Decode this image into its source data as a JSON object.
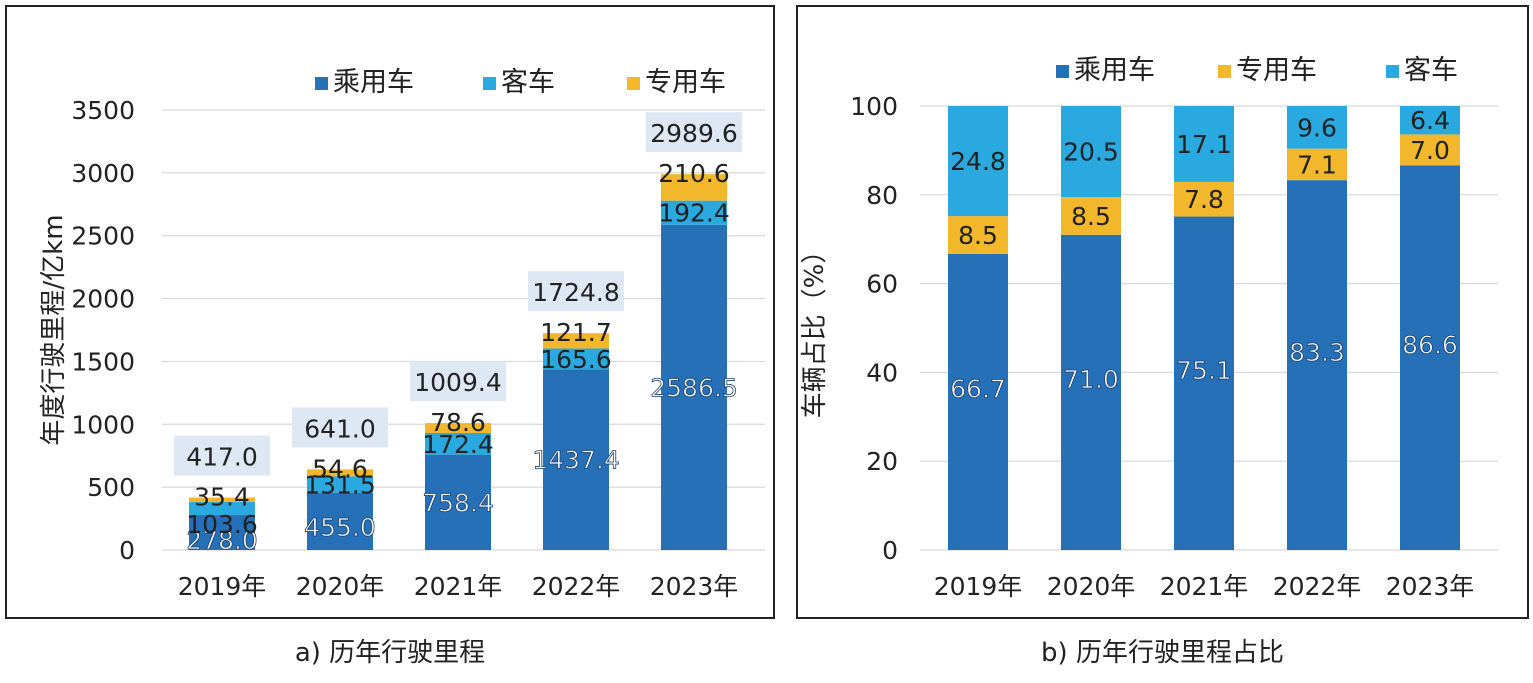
{
  "colors": {
    "passenger": "#2570b7",
    "bus": "#2aa9e0",
    "special": "#f2b72b",
    "total_bg": "#dde8f4",
    "grid": "#d9d9d9",
    "text": "#222222"
  },
  "captions": {
    "a": "a) 历年行驶里程",
    "b": "b) 历年行驶里程占比"
  },
  "chart_data": [
    {
      "type": "bar",
      "stacked": true,
      "title": "",
      "xlabel": "",
      "ylabel": "年度行驶里程/亿km",
      "ylim": [
        0,
        3500
      ],
      "yticks": [
        "0",
        "500",
        "1000",
        "1500",
        "2000",
        "2500",
        "3000",
        "3500"
      ],
      "grid": true,
      "legend_position": "top",
      "categories": [
        "2019年",
        "2020年",
        "2021年",
        "2022年",
        "2023年"
      ],
      "series": [
        {
          "name": "乘用车",
          "values": [
            278.0,
            455.0,
            758.4,
            1437.4,
            2586.5
          ],
          "labels": [
            "278.0",
            "455.0",
            "758.4",
            "1437.4",
            "2586.5"
          ]
        },
        {
          "name": "客车",
          "values": [
            103.6,
            131.5,
            172.4,
            165.6,
            192.4
          ],
          "labels": [
            "103.6",
            "131.5",
            "172.4",
            "165.6",
            "192.4"
          ]
        },
        {
          "name": "专用车",
          "values": [
            35.4,
            54.6,
            78.6,
            121.7,
            210.6
          ],
          "labels": [
            "35.4",
            "54.6",
            "78.6",
            "121.7",
            "210.6"
          ]
        }
      ],
      "legend_order": [
        "乘用车",
        "客车",
        "专用车"
      ],
      "totals": [
        417.0,
        641.0,
        1009.4,
        1724.8,
        2989.6
      ],
      "total_labels": [
        "417.0",
        "641.0",
        "1009.4",
        "1724.8",
        "2989.6"
      ]
    },
    {
      "type": "bar",
      "stacked": true,
      "title": "",
      "xlabel": "",
      "ylabel": "车辆占比（%）",
      "ylim": [
        0,
        100
      ],
      "yticks": [
        "0",
        "20",
        "40",
        "60",
        "80",
        "100"
      ],
      "grid": true,
      "legend_position": "top",
      "categories": [
        "2019年",
        "2020年",
        "2021年",
        "2022年",
        "2023年"
      ],
      "series": [
        {
          "name": "乘用车",
          "values": [
            66.7,
            71.0,
            75.1,
            83.3,
            86.6
          ],
          "labels": [
            "66.7",
            "71.0",
            "75.1",
            "83.3",
            "86.6"
          ]
        },
        {
          "name": "专用车",
          "values": [
            8.5,
            8.5,
            7.8,
            7.1,
            7.0
          ],
          "labels": [
            "8.5",
            "8.5",
            "7.8",
            "7.1",
            "7.0"
          ]
        },
        {
          "name": "客车",
          "values": [
            24.8,
            20.5,
            17.1,
            9.6,
            6.4
          ],
          "labels": [
            "24.8",
            "20.5",
            "17.1",
            "9.6",
            "6.4"
          ]
        }
      ],
      "legend_order": [
        "乘用车",
        "专用车",
        "客车"
      ]
    }
  ]
}
